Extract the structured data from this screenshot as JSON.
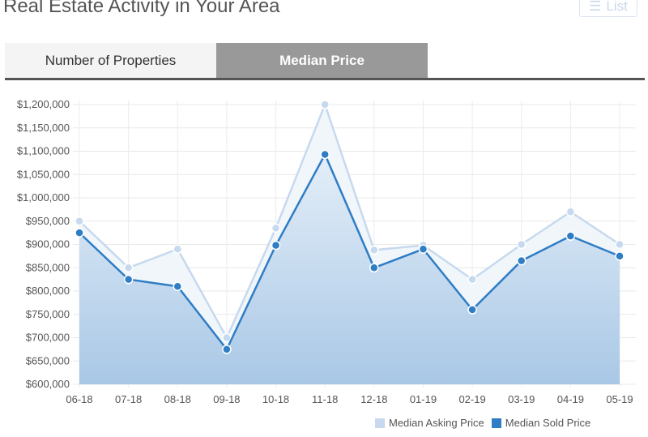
{
  "header": {
    "title": "Real Estate Activity in Your Area",
    "list_button": "List",
    "list_icon": "list-icon"
  },
  "tabs": [
    {
      "label": "Number of Properties",
      "active": false
    },
    {
      "label": "Median Price",
      "active": true
    }
  ],
  "chart_data": {
    "type": "line",
    "categories": [
      "06-18",
      "07-18",
      "08-18",
      "09-18",
      "10-18",
      "11-18",
      "12-18",
      "01-19",
      "02-19",
      "03-19",
      "04-19",
      "05-19"
    ],
    "ylim": [
      600000,
      1200000
    ],
    "yticks": [
      "$600,000",
      "$650,000",
      "$700,000",
      "$750,000",
      "$800,000",
      "$850,000",
      "$900,000",
      "$950,000",
      "$1,000,000",
      "$1,050,000",
      "$1,100,000",
      "$1,150,000",
      "$1,200,000"
    ],
    "grid": true,
    "legend": "bottom-right",
    "series": [
      {
        "name": "Median Asking Price",
        "color": "#c6d9ee",
        "values": [
          950000,
          850000,
          890000,
          700000,
          935000,
          1200000,
          888000,
          898000,
          825000,
          900000,
          970000,
          900000
        ]
      },
      {
        "name": "Median Sold Price",
        "color": "#2e7dc5",
        "values": [
          925000,
          825000,
          810000,
          675000,
          898000,
          1093000,
          850000,
          890000,
          760000,
          865000,
          918000,
          875000
        ]
      }
    ]
  }
}
